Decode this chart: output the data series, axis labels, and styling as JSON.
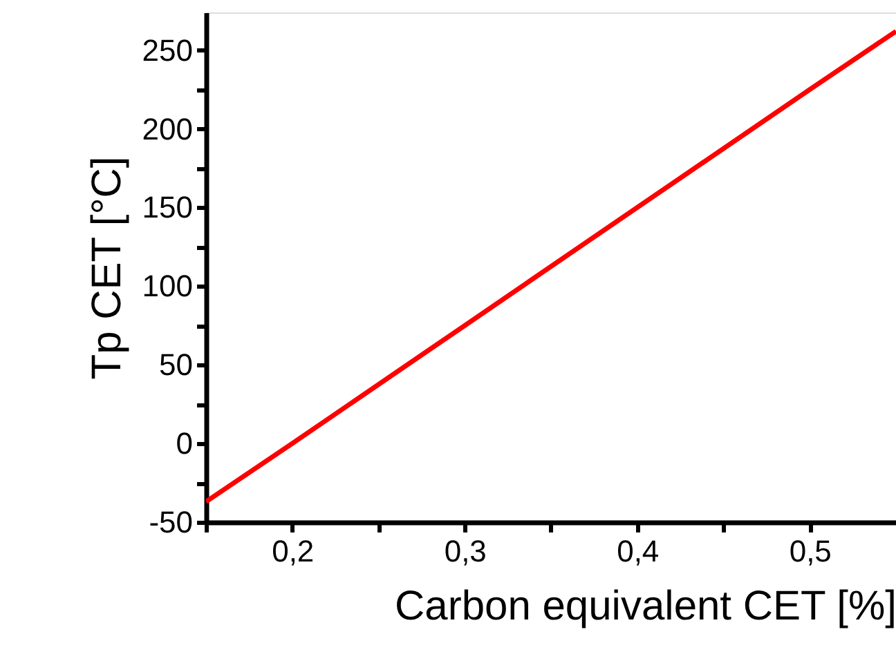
{
  "chart_data": {
    "type": "line",
    "xlabel": "Carbon equivalent CET [%]",
    "ylabel": "Tp CET [°C]",
    "x": [
      0.15,
      0.2,
      0.3,
      0.4,
      0.5,
      0.55
    ],
    "series": [
      {
        "color": "#ff0000",
        "values": [
          -37,
          0,
          75,
          150,
          225,
          262
        ]
      }
    ],
    "xlim": [
      0.15,
      0.55
    ],
    "ylim": [
      -50,
      274
    ],
    "xticks": [
      {
        "value": 0.15,
        "label": null
      },
      {
        "value": 0.2,
        "label": "0,2"
      },
      {
        "value": 0.25,
        "label": null
      },
      {
        "value": 0.3,
        "label": "0,3"
      },
      {
        "value": 0.35,
        "label": null
      },
      {
        "value": 0.4,
        "label": "0,4"
      },
      {
        "value": 0.45,
        "label": null
      },
      {
        "value": 0.5,
        "label": "0,5"
      }
    ],
    "yticks": [
      -50,
      {
        "value": -25,
        "label": null
      },
      0,
      {
        "value": 25,
        "label": null
      },
      50,
      {
        "value": 75,
        "label": null
      },
      100,
      {
        "value": 125,
        "label": null
      },
      150,
      {
        "value": 175,
        "label": null
      },
      200,
      {
        "value": 225,
        "label": null
      },
      250
    ],
    "grid": false,
    "marker": "none",
    "line_style": "solid"
  }
}
